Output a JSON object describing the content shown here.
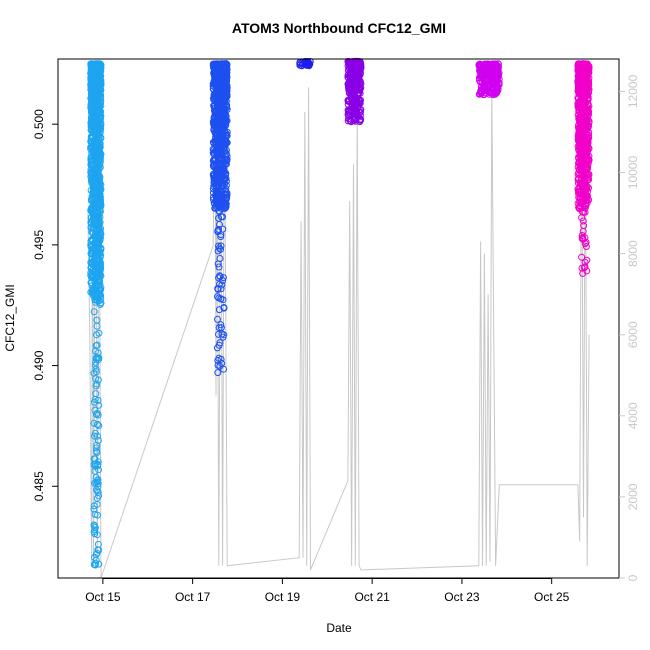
{
  "chart_data": {
    "type": "scatter",
    "title": "ATOM3 Northbound CFC12_GMI",
    "xlabel": "Date",
    "ylabel": "CFC12_GMI",
    "x_axis": {
      "type": "date",
      "range": [
        "2017-10-14T00:00",
        "2017-10-26T12:00"
      ],
      "ticks": [
        {
          "date": "2017-10-15",
          "label": "Oct 15"
        },
        {
          "date": "2017-10-17",
          "label": "Oct 17"
        },
        {
          "date": "2017-10-19",
          "label": "Oct 19"
        },
        {
          "date": "2017-10-21",
          "label": "Oct 21"
        },
        {
          "date": "2017-10-23",
          "label": "Oct 23"
        },
        {
          "date": "2017-10-25",
          "label": "Oct 25"
        }
      ]
    },
    "y_axis": {
      "range": [
        0.4812,
        0.5027
      ],
      "ticks": [
        0.485,
        0.49,
        0.495,
        0.5
      ]
    },
    "y2_axis": {
      "range": [
        0,
        12800
      ],
      "ticks": [
        0,
        2000,
        4000,
        6000,
        8000,
        10000,
        12000
      ],
      "color": "#c8c8c8"
    },
    "grid": false,
    "legend": "none",
    "series": [
      {
        "color": "#1EA5F0",
        "x_start": "2017-10-14T17:30",
        "x_end": "2017-10-14T23:00",
        "y_top": 0.5025,
        "y_bottom": 0.4817,
        "dense_bottom": 0.4925
      },
      {
        "color": "#1E50F0",
        "x_start": "2017-10-17T11:00",
        "x_end": "2017-10-17T18:30",
        "y_top": 0.5025,
        "y_bottom": 0.4897,
        "dense_bottom": 0.4965
      },
      {
        "color": "#1E1EF0",
        "x_start": "2017-10-19T09:00",
        "x_end": "2017-10-19T15:00",
        "y_top": 0.5026,
        "y_bottom": 0.5024,
        "dense_bottom": 0.5024
      },
      {
        "color": "#8A00E6",
        "x_start": "2017-10-20T11:00",
        "x_end": "2017-10-20T18:00",
        "y_top": 0.5026,
        "y_bottom": 0.5001,
        "dense_bottom": 0.5001
      },
      {
        "color": "#D200F0",
        "x_start": "2017-10-23T09:00",
        "x_end": "2017-10-23T20:00",
        "y_top": 0.5025,
        "y_bottom": 0.5012,
        "dense_bottom": 0.5012
      },
      {
        "color": "#F000C8",
        "x_start": "2017-10-25T14:00",
        "x_end": "2017-10-25T20:00",
        "y_top": 0.5025,
        "y_bottom": 0.4938,
        "dense_bottom": 0.4965
      }
    ],
    "altitude_trace": {
      "color": "#c8c8c8",
      "points": [
        [
          "2017-10-14T16:00",
          9000
        ],
        [
          "2017-10-14T17:00",
          6000
        ],
        [
          "2017-10-14T18:00",
          300
        ],
        [
          "2017-10-14T18:30",
          12500
        ],
        [
          "2017-10-14T19:00",
          300
        ],
        [
          "2017-10-14T20:00",
          12000
        ],
        [
          "2017-10-14T21:00",
          500
        ],
        [
          "2017-10-14T22:00",
          11000
        ],
        [
          "2017-10-14T23:00",
          0
        ],
        [
          "2017-10-17T11:00",
          8200
        ],
        [
          "2017-10-17T12:00",
          12500
        ],
        [
          "2017-10-17T12:30",
          4500
        ],
        [
          "2017-10-17T13:00",
          12400
        ],
        [
          "2017-10-17T14:00",
          300
        ],
        [
          "2017-10-17T15:00",
          12400
        ],
        [
          "2017-10-17T16:00",
          300
        ],
        [
          "2017-10-17T17:00",
          12400
        ],
        [
          "2017-10-17T18:30",
          300
        ],
        [
          "2017-10-19T09:00",
          500
        ],
        [
          "2017-10-19T10:00",
          8800
        ],
        [
          "2017-10-19T11:00",
          500
        ],
        [
          "2017-10-19T12:00",
          11500
        ],
        [
          "2017-10-19T13:00",
          300
        ],
        [
          "2017-10-19T14:00",
          12100
        ],
        [
          "2017-10-19T15:00",
          200
        ],
        [
          "2017-10-20T11:00",
          2400
        ],
        [
          "2017-10-20T12:00",
          9300
        ],
        [
          "2017-10-20T13:00",
          300
        ],
        [
          "2017-10-20T14:00",
          10200
        ],
        [
          "2017-10-20T15:00",
          300
        ],
        [
          "2017-10-20T16:00",
          11500
        ],
        [
          "2017-10-20T17:00",
          300
        ],
        [
          "2017-10-20T18:00",
          200
        ],
        [
          "2017-10-23T09:00",
          300
        ],
        [
          "2017-10-23T10:00",
          8300
        ],
        [
          "2017-10-23T11:00",
          300
        ],
        [
          "2017-10-23T12:00",
          8000
        ],
        [
          "2017-10-23T13:00",
          300
        ],
        [
          "2017-10-23T14:00",
          7000
        ],
        [
          "2017-10-23T15:00",
          400
        ],
        [
          "2017-10-23T16:00",
          12100
        ],
        [
          "2017-10-23T18:00",
          300
        ],
        [
          "2017-10-23T20:00",
          2300
        ],
        [
          "2017-10-25T14:00",
          2300
        ],
        [
          "2017-10-25T15:00",
          900
        ],
        [
          "2017-10-25T16:00",
          12000
        ],
        [
          "2017-10-25T17:00",
          1500
        ],
        [
          "2017-10-25T18:00",
          11500
        ],
        [
          "2017-10-25T19:00",
          300
        ],
        [
          "2017-10-25T20:00",
          6000
        ]
      ]
    }
  }
}
